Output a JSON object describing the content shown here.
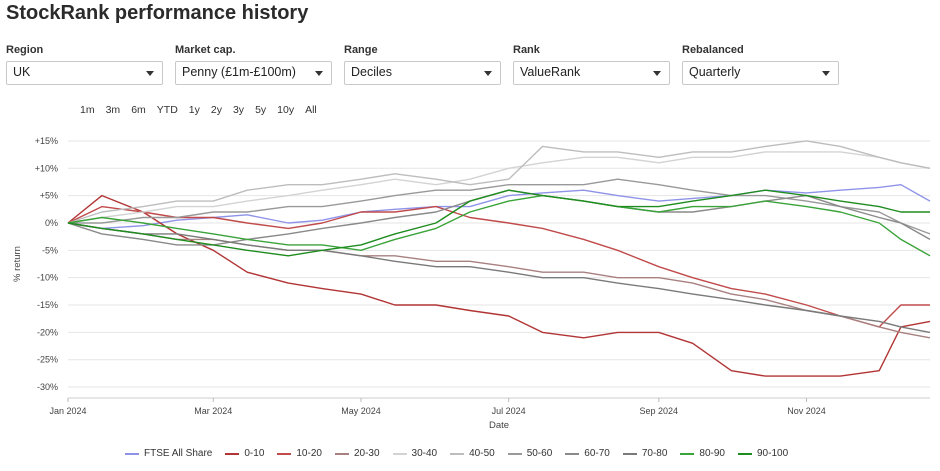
{
  "title": "StockRank performance history",
  "filters": [
    {
      "label": "Region",
      "value": "UK"
    },
    {
      "label": "Market cap.",
      "value": "Penny (£1m-£100m)"
    },
    {
      "label": "Range",
      "value": "Deciles"
    },
    {
      "label": "Rank",
      "value": "ValueRank"
    },
    {
      "label": "Rebalanced",
      "value": "Quarterly"
    }
  ],
  "periods": [
    "1m",
    "3m",
    "6m",
    "YTD",
    "1y",
    "2y",
    "3y",
    "5y",
    "10y",
    "All"
  ],
  "chart_data": {
    "type": "line",
    "xlabel": "Date",
    "ylabel": "% return",
    "xlim": [
      "2024-01-01",
      "2024-12-22"
    ],
    "ylim": [
      -32,
      17
    ],
    "yticks": [
      15,
      10,
      5,
      0,
      -5,
      -10,
      -15,
      -20,
      -25,
      -30
    ],
    "ytick_labels": [
      "+15%",
      "+10%",
      "+5%",
      "0%",
      "-5%",
      "-10%",
      "-15%",
      "-20%",
      "-25%",
      "-30%"
    ],
    "xticks": [
      "2024-01-01",
      "2024-03-01",
      "2024-05-01",
      "2024-07-01",
      "2024-09-01",
      "2024-11-01"
    ],
    "xtick_labels": [
      "Jan 2024",
      "Mar 2024",
      "May 2024",
      "Jul 2024",
      "Sep 2024",
      "Nov 2024"
    ],
    "grid": "horizontal",
    "legend_position": "bottom",
    "x": [
      "2024-01-01",
      "2024-01-15",
      "2024-02-01",
      "2024-02-15",
      "2024-03-01",
      "2024-03-15",
      "2024-04-01",
      "2024-04-15",
      "2024-05-01",
      "2024-05-15",
      "2024-06-01",
      "2024-06-15",
      "2024-07-01",
      "2024-07-15",
      "2024-08-01",
      "2024-08-15",
      "2024-09-01",
      "2024-09-15",
      "2024-10-01",
      "2024-10-15",
      "2024-11-01",
      "2024-11-15",
      "2024-12-01",
      "2024-12-10",
      "2024-12-22"
    ],
    "series": [
      {
        "name": "FTSE All Share",
        "color": "#8f93e8",
        "values": [
          0,
          -1,
          -0.5,
          0.5,
          1,
          1.5,
          0,
          0.5,
          2,
          2.5,
          3,
          3,
          5,
          5.5,
          6,
          5,
          4,
          4.5,
          5,
          6,
          5.5,
          6,
          6.5,
          7,
          4
        ]
      },
      {
        "name": "0-10",
        "color": "#b23434",
        "values": [
          0,
          5,
          2,
          -2,
          -5,
          -9,
          -11,
          -12,
          -13,
          -15,
          -15,
          -16,
          -17,
          -20,
          -21,
          -20,
          -20,
          -22,
          -27,
          -28,
          -28,
          -28,
          -27,
          -19,
          -18
        ]
      },
      {
        "name": "10-20",
        "color": "#c14a4a",
        "values": [
          0,
          3,
          2,
          1,
          1,
          0,
          -1,
          0,
          2,
          2,
          3,
          1,
          0,
          -1,
          -3,
          -5,
          -8,
          -10,
          -12,
          -13,
          -15,
          -17,
          -19,
          -15,
          -15
        ]
      },
      {
        "name": "20-30",
        "color": "#a88080",
        "values": [
          0,
          -1,
          -2,
          -3,
          -3,
          -4,
          -5,
          -5,
          -6,
          -6,
          -7,
          -7,
          -8,
          -9,
          -9,
          -10,
          -10,
          -11,
          -13,
          -14,
          -16,
          -17,
          -19,
          -20,
          -21
        ]
      },
      {
        "name": "30-40",
        "color": "#d3d3d3",
        "values": [
          0,
          1,
          2,
          3,
          3,
          4,
          5,
          6,
          7,
          8,
          7,
          8,
          10,
          11,
          12,
          12,
          11,
          12,
          12,
          13,
          13,
          13,
          12,
          11,
          10
        ]
      },
      {
        "name": "40-50",
        "color": "#bdbdbd",
        "values": [
          0,
          2,
          3,
          4,
          4,
          6,
          7,
          7,
          8,
          9,
          8,
          7,
          8,
          14,
          13,
          13,
          12,
          13,
          13,
          14,
          15,
          14,
          12,
          11,
          10
        ]
      },
      {
        "name": "50-60",
        "color": "#999999",
        "values": [
          0,
          0,
          1,
          1,
          2,
          2,
          3,
          3,
          4,
          5,
          6,
          6,
          7,
          7,
          7,
          8,
          7,
          6,
          5,
          5,
          4,
          3,
          2,
          0,
          -2
        ]
      },
      {
        "name": "60-70",
        "color": "#8a8a8a",
        "values": [
          0,
          -2,
          -3,
          -4,
          -4,
          -3,
          -2,
          -1,
          0,
          1,
          2,
          4,
          6,
          5,
          4,
          3,
          2,
          2,
          3,
          4,
          5,
          3,
          1,
          0,
          -3
        ]
      },
      {
        "name": "70-80",
        "color": "#7a7a7a",
        "values": [
          0,
          -1,
          -2,
          -2,
          -3,
          -4,
          -5,
          -5,
          -6,
          -7,
          -8,
          -8,
          -9,
          -10,
          -10,
          -11,
          -12,
          -13,
          -14,
          -15,
          -16,
          -17,
          -18,
          -19,
          -20
        ]
      },
      {
        "name": "80-90",
        "color": "#3aa33a",
        "values": [
          0,
          1,
          0,
          -1,
          -2,
          -3,
          -4,
          -4,
          -5,
          -3,
          -1,
          2,
          4,
          5,
          4,
          3,
          2,
          3,
          3,
          4,
          3,
          2,
          0,
          -3,
          -6
        ]
      },
      {
        "name": "90-100",
        "color": "#1f8c1f",
        "values": [
          0,
          -1,
          -2,
          -3,
          -4,
          -5,
          -6,
          -5,
          -4,
          -2,
          0,
          4,
          6,
          5,
          4,
          3,
          3,
          4,
          5,
          6,
          5,
          4,
          3,
          2,
          2
        ]
      }
    ]
  }
}
